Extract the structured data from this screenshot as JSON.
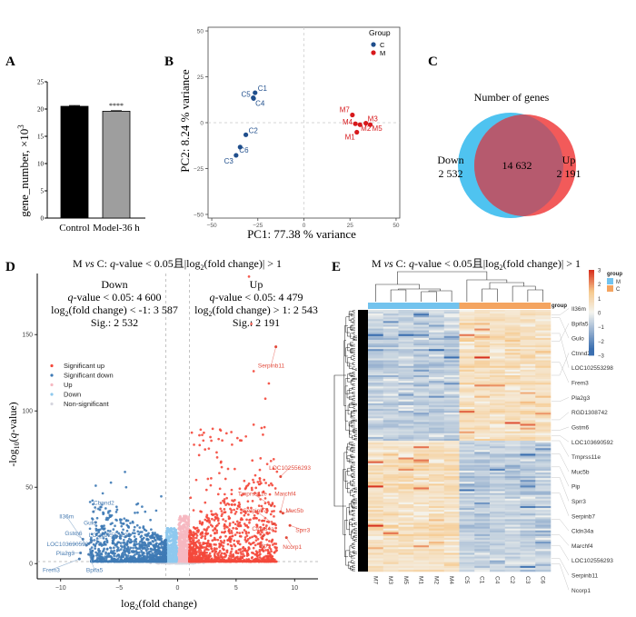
{
  "panels": {
    "A": "A",
    "B": "B",
    "C": "C",
    "D": "D",
    "E": "E"
  },
  "chart_data": [
    {
      "id": "A",
      "type": "bar",
      "title": "",
      "xlabel": "",
      "ylabel": "gene_number, ×10",
      "ylabel_sup": "3",
      "ylim": [
        0,
        25
      ],
      "yticks": [
        0,
        5,
        10,
        15,
        20,
        25
      ],
      "categories": [
        "Control",
        "Model-36 h"
      ],
      "values": [
        20.5,
        19.6
      ],
      "errors": [
        0.15,
        0.1
      ],
      "colors": [
        "#000000",
        "#9e9e9e"
      ],
      "annotations": [
        "",
        "****"
      ]
    },
    {
      "id": "B",
      "type": "scatter",
      "xlabel": "PC1: 77.38 % variance",
      "ylabel": "PC2: 8.24 % variance",
      "xlim": [
        -52,
        52
      ],
      "ylim": [
        -52,
        52
      ],
      "xticks": [
        -50,
        -25,
        0,
        25,
        50
      ],
      "yticks": [
        -50,
        -25,
        0,
        25,
        50
      ],
      "legend": {
        "title": "Group",
        "position": "top-right",
        "entries": [
          {
            "name": "C",
            "color": "#1f4e8c"
          },
          {
            "name": "M",
            "color": "#d7191c"
          }
        ]
      },
      "series": [
        {
          "name": "C",
          "color": "#1f4e8c",
          "points": [
            {
              "label": "C1",
              "x": -26.5,
              "y": 16.3
            },
            {
              "label": "C5",
              "x": -27.5,
              "y": 13.6
            },
            {
              "label": "C4",
              "x": -27.3,
              "y": 13.2
            },
            {
              "label": "C2",
              "x": -31.5,
              "y": -6.6
            },
            {
              "label": "C6",
              "x": -34.6,
              "y": -13.3
            },
            {
              "label": "C3",
              "x": -36.8,
              "y": -17.8
            }
          ]
        },
        {
          "name": "M",
          "color": "#d7191c",
          "points": [
            {
              "label": "M7",
              "x": 26.3,
              "y": 4.2
            },
            {
              "label": "M4",
              "x": 27.9,
              "y": -0.6
            },
            {
              "label": "M2",
              "x": 30.4,
              "y": -1.1
            },
            {
              "label": "M3",
              "x": 33.6,
              "y": -0.3
            },
            {
              "label": "M5",
              "x": 36.0,
              "y": -1.1
            },
            {
              "label": "M1",
              "x": 28.7,
              "y": -5.2
            }
          ]
        }
      ]
    },
    {
      "id": "C",
      "type": "venn",
      "title": "Number of genes",
      "sets": [
        {
          "name": "Down",
          "only": "2 532",
          "color": "#4fc3f0"
        },
        {
          "name": "Up",
          "only": "2 191",
          "color": "#f25a5a"
        }
      ],
      "intersection": "14 632",
      "overlap_color": "#b65a6e"
    },
    {
      "id": "D",
      "type": "scatter",
      "subtype": "volcano",
      "title_parts": [
        "M ",
        "vs",
        " C: ",
        "q",
        "-value < 0.05且|log",
        "2",
        "(fold change)| > 1"
      ],
      "xlabel": "log2(fold change)",
      "ylabel": "-log10(q-value)",
      "xlim": [
        -12,
        12
      ],
      "ylim": [
        -10,
        190
      ],
      "xticks": [
        -10,
        -5,
        0,
        5,
        10
      ],
      "yticks": [
        0,
        50,
        100,
        150
      ],
      "thresholds": {
        "x": [
          -1,
          1
        ],
        "y": 1.3
      },
      "down_box": {
        "title": "Down",
        "lines": [
          "q-value < 0.05: 4 600",
          "log2(fold change) < -1: 3 587",
          "Sig.: 2 532"
        ]
      },
      "up_box": {
        "title": "Up",
        "lines": [
          "q-value < 0.05: 4 479",
          "log2(fold change) > 1: 2 543",
          "Sig.: 2 191"
        ]
      },
      "legend": {
        "position": "middle-left",
        "entries": [
          {
            "name": "Significant up",
            "color": "#f4483b"
          },
          {
            "name": "Significant down",
            "color": "#3e7ab5"
          },
          {
            "name": "Up",
            "color": "#f6b8c1"
          },
          {
            "name": "Down",
            "color": "#8ec9ee"
          },
          {
            "name": "Non-significant",
            "color": "#d6d6de"
          }
        ]
      },
      "counts": {
        "sig_up": 2191,
        "sig_down": 2532
      },
      "highlighted_points": [
        {
          "x": 8.4,
          "y": 142,
          "color": "#f4483b"
        },
        {
          "x": 6.1,
          "y": 188,
          "color": "#f4483b"
        },
        {
          "x": 6.3,
          "y": 157,
          "color": "#f4483b"
        },
        {
          "x": 6.5,
          "y": 126,
          "color": "#f4483b"
        },
        {
          "x": 7.8,
          "y": 118,
          "color": "#f4483b"
        },
        {
          "x": 7.5,
          "y": 108,
          "color": "#f4483b"
        },
        {
          "x": 6.5,
          "y": 91,
          "color": "#f4483b"
        },
        {
          "x": -4.5,
          "y": 60,
          "color": "#3e7ab5"
        },
        {
          "x": -7.0,
          "y": 51,
          "color": "#3e7ab5"
        },
        {
          "x": -5.7,
          "y": 53,
          "color": "#3e7ab5"
        },
        {
          "x": -4.4,
          "y": 50,
          "color": "#3e7ab5"
        },
        {
          "x": -6.4,
          "y": 46,
          "color": "#3e7ab5"
        },
        {
          "x": -1.4,
          "y": 44,
          "color": "#3e7ab5"
        }
      ],
      "gene_labels": [
        {
          "name": "Serpinb11",
          "x": 8.4,
          "y": 142,
          "tx": 8.0,
          "ty": 130,
          "side": "up"
        },
        {
          "name": "LOC102556293",
          "x": 8.8,
          "y": 57,
          "tx": 9.6,
          "ty": 63,
          "side": "up"
        },
        {
          "name": "Tmprss11e",
          "x": 8.0,
          "y": 38,
          "tx": 6.4,
          "ty": 46,
          "side": "up"
        },
        {
          "name": "Marchf4",
          "x": 8.8,
          "y": 34,
          "tx": 9.2,
          "ty": 46,
          "side": "up"
        },
        {
          "name": "Muc5b",
          "x": 9.0,
          "y": 33,
          "tx": 10.0,
          "ty": 35,
          "side": "up"
        },
        {
          "name": "Serpinb7",
          "x": 8.2,
          "y": 26,
          "tx": 6.6,
          "ty": 35,
          "side": "up"
        },
        {
          "name": "Sprr3",
          "x": 9.6,
          "y": 25,
          "tx": 10.7,
          "ty": 22,
          "side": "up"
        },
        {
          "name": "Cldn34a",
          "x": 7.3,
          "y": 18,
          "tx": 7.3,
          "ty": 23,
          "side": "up"
        },
        {
          "name": "Ncorp1",
          "x": 9.3,
          "y": 17,
          "tx": 9.8,
          "ty": 11,
          "side": "up"
        },
        {
          "name": "Pip",
          "x": 7.1,
          "y": 11,
          "tx": 7.3,
          "ty": 12,
          "side": "up"
        },
        {
          "name": "Cbnnd2",
          "x": -7.2,
          "y": 34,
          "tx": -6.3,
          "ty": 40,
          "side": "down"
        },
        {
          "name": "Il36m",
          "x": -7.8,
          "y": 12,
          "tx": -9.5,
          "ty": 31,
          "side": "down"
        },
        {
          "name": "Gulo",
          "x": -7.0,
          "y": 27,
          "tx": -7.5,
          "ty": 27,
          "side": "down"
        },
        {
          "name": "Gstm6",
          "x": -8.1,
          "y": 16,
          "tx": -8.9,
          "ty": 20,
          "side": "down"
        },
        {
          "name": "LOC103690592",
          "x": -7.6,
          "y": 13,
          "tx": -9.4,
          "ty": 13,
          "side": "down"
        },
        {
          "name": "LOC102553298",
          "x": -7.4,
          "y": 14,
          "tx": -5.8,
          "ty": 19,
          "side": "down"
        },
        {
          "name": "Pla2g3",
          "x": -8.3,
          "y": 7,
          "tx": -9.6,
          "ty": 7,
          "side": "down"
        },
        {
          "name": "Bpifa5",
          "x": -7.6,
          "y": 6,
          "tx": -7.1,
          "ty": -4,
          "side": "down"
        },
        {
          "name": "Frem3",
          "x": -8.4,
          "y": 3,
          "tx": -10.8,
          "ty": -4,
          "side": "down"
        }
      ]
    },
    {
      "id": "E",
      "type": "heatmap",
      "title_parts": [
        "M ",
        "vs",
        " C: ",
        "q",
        "-value < 0.05且|log",
        "2",
        "(fold change)| > 1"
      ],
      "columns": [
        "M7",
        "M3",
        "M5",
        "M1",
        "M2",
        "M4",
        "C5",
        "C1",
        "C4",
        "C2",
        "C3",
        "C6"
      ],
      "column_groups": [
        "M",
        "M",
        "M",
        "M",
        "M",
        "M",
        "C",
        "C",
        "C",
        "C",
        "C",
        "C"
      ],
      "group_annotation_label": "group",
      "colorbar": {
        "min": -3,
        "max": 3,
        "ticks": [
          3,
          2,
          1,
          0,
          -1,
          -2,
          -3
        ],
        "low": "#3b6fb0",
        "mid": "#f7f7f5",
        "high": "#d7301f"
      },
      "group_legend": {
        "title": "group",
        "entries": [
          {
            "name": "M",
            "color": "#72c3ee"
          },
          {
            "name": "C",
            "color": "#f4a460"
          }
        ]
      },
      "row_labels": [
        "Il36m",
        "Bpifa5",
        "Gulo",
        "Ctnnd2",
        "LOC102553298",
        "Frem3",
        "Pla2g3",
        "RGD1308742",
        "Gstm6",
        "LOC103690592",
        "Tmprss11e",
        "Muc5b",
        "Pip",
        "Sprr3",
        "Serpinb7",
        "Cldn34a",
        "Marchf4",
        "LOC102556293",
        "Serpinb11",
        "Ncorp1"
      ],
      "blocks": [
        {
          "rows_fraction": 0.5,
          "pattern": "down_in_M",
          "description": "top half: M low (blue), C high (orange)"
        },
        {
          "rows_fraction": 0.5,
          "pattern": "up_in_M",
          "description": "bottom half: M high (orange), C low (blue)"
        }
      ]
    }
  ]
}
